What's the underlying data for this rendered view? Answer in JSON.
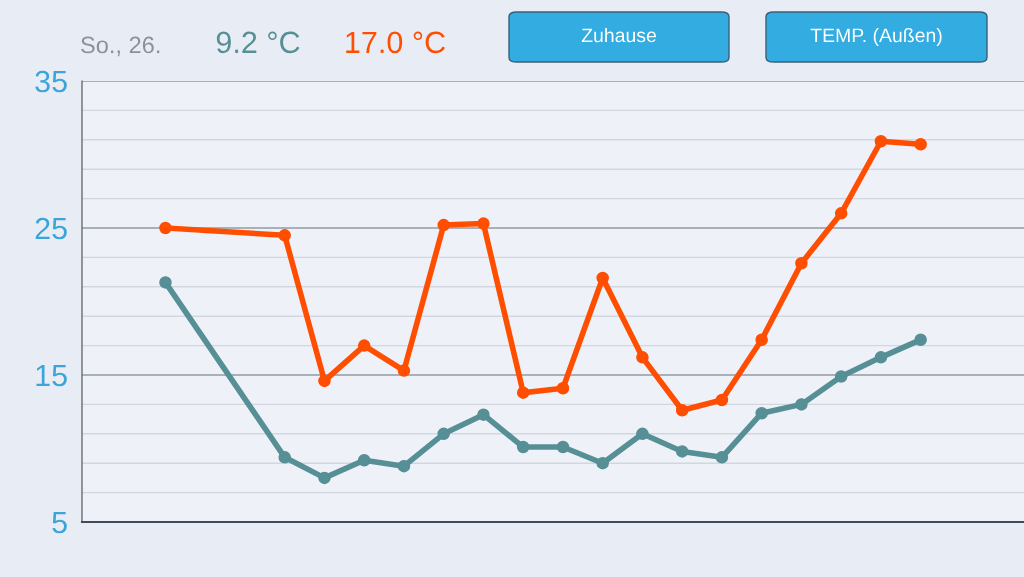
{
  "chart_data": {
    "type": "line",
    "categories": [
      null,
      null,
      null,
      null,
      null,
      null,
      null,
      null,
      null,
      null,
      null,
      null,
      null,
      null,
      null,
      null,
      null,
      null,
      null,
      null
    ],
    "series": [
      {
        "color": "#ff4e00",
        "values": [
          25.0,
          null,
          null,
          24.5,
          14.6,
          17.0,
          15.3,
          25.2,
          25.3,
          13.8,
          14.1,
          21.6,
          16.2,
          12.6,
          13.3,
          17.4,
          22.6,
          26.0,
          30.9,
          30.7
        ]
      },
      {
        "color": "#568f95",
        "values": [
          21.3,
          null,
          null,
          9.4,
          8.0,
          9.2,
          8.8,
          11.0,
          12.3,
          10.1,
          10.1,
          9.0,
          11.0,
          9.8,
          9.4,
          12.4,
          13.0,
          14.9,
          16.2,
          17.4
        ]
      }
    ],
    "ylim": [
      5,
      35
    ],
    "yticks": [
      5,
      {
        "value": 7,
        "label": null
      },
      {
        "value": 9,
        "label": null
      },
      {
        "value": 11,
        "label": null
      },
      {
        "value": 13,
        "label": null
      },
      15,
      {
        "value": 17,
        "label": null
      },
      {
        "value": 19,
        "label": null
      },
      {
        "value": 21,
        "label": null
      },
      {
        "value": 23,
        "label": null
      },
      25,
      {
        "value": 27,
        "label": null
      },
      {
        "value": 29,
        "label": null
      },
      {
        "value": 31,
        "label": null
      },
      {
        "value": 33,
        "label": null
      },
      35
    ],
    "grid": "y",
    "marker": "circle",
    "line_style": "solid",
    "tick_labels": "y",
    "annotations": [
      "So., 26.",
      "9.2 °C",
      "17.0 °C",
      "Zuhause",
      "TEMP. (Außen)"
    ]
  }
}
